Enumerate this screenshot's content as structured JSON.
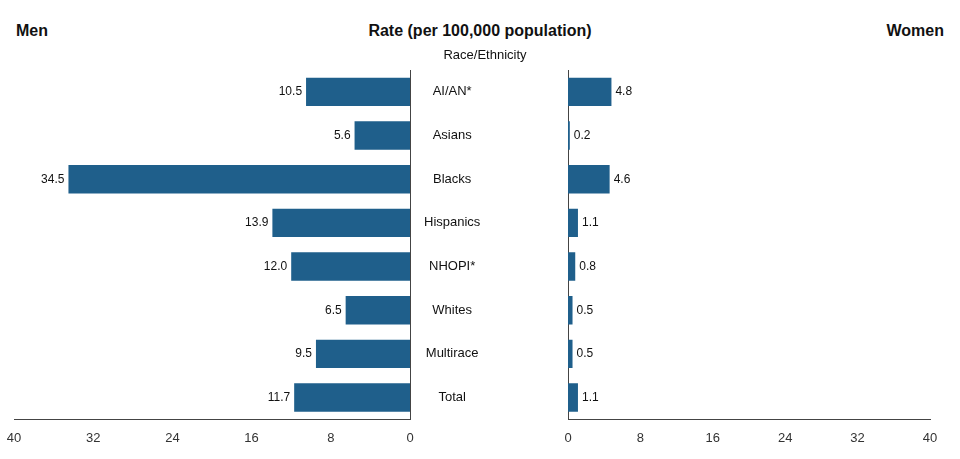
{
  "chart_data": {
    "type": "bar",
    "orientation": "horizontal",
    "title": "Rate (per 100,000 population)",
    "ylabel": "Race/Ethnicity",
    "categories": [
      "AI/AN*",
      "Asians",
      "Blacks",
      "Hispanics",
      "NHOPI*",
      "Whites",
      "Multirace",
      "Total"
    ],
    "series": [
      {
        "name": "Men",
        "color": "#1F5F8B",
        "values": [
          10.5,
          5.6,
          34.5,
          13.9,
          12.0,
          6.5,
          9.5,
          11.7
        ],
        "value_labels": [
          "10.5",
          "5.6",
          "34.5",
          "13.9",
          "12.0",
          "6.5",
          "9.5",
          "11.7"
        ]
      },
      {
        "name": "Women",
        "color": "#1F5F8B",
        "values": [
          4.8,
          0.2,
          4.6,
          1.1,
          0.8,
          0.5,
          0.5,
          1.1
        ]
      }
    ],
    "xlim": [
      0,
      40
    ],
    "xticks": [
      0,
      8,
      16,
      24,
      32,
      40
    ],
    "data_labels": true,
    "grid": false
  }
}
